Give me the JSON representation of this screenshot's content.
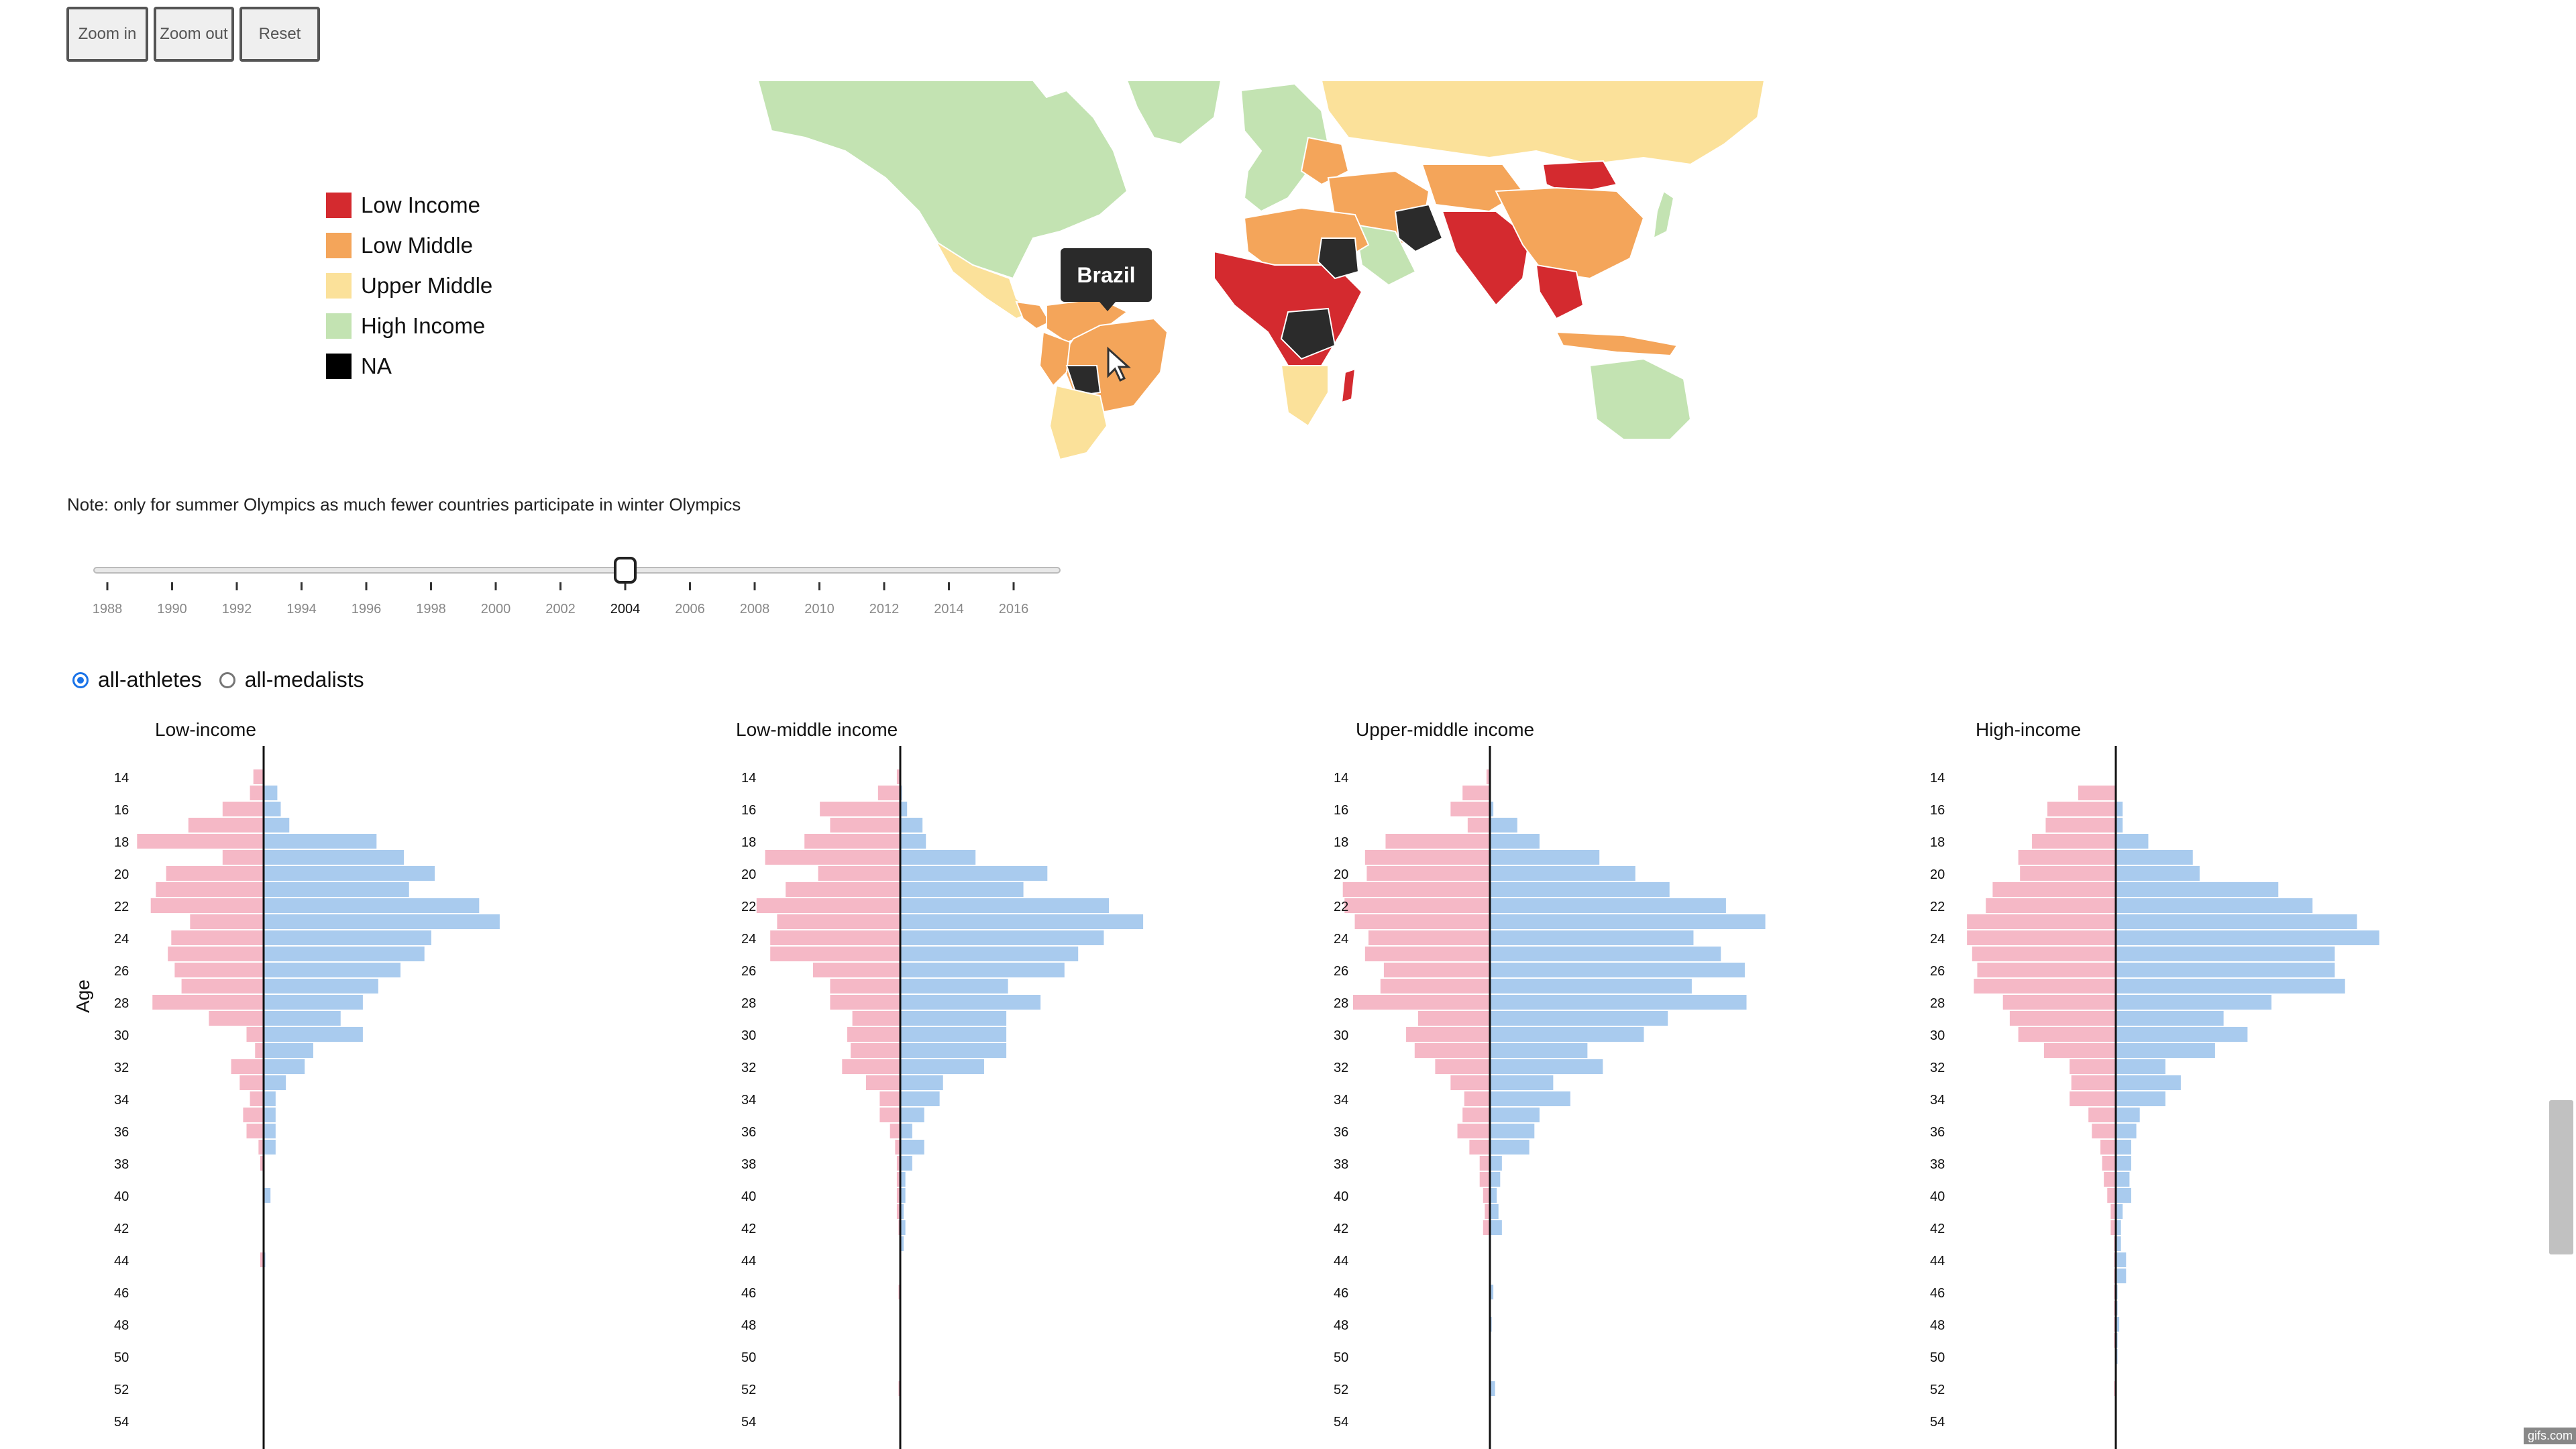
{
  "toolbar": {
    "zoom_in": "Zoom in",
    "zoom_out": "Zoom out",
    "reset": "Reset"
  },
  "legend": [
    {
      "label": "Low Income",
      "color": "#d42a2f"
    },
    {
      "label": "Low Middle",
      "color": "#f4a55a"
    },
    {
      "label": "Upper Middle",
      "color": "#fbe19a"
    },
    {
      "label": "High Income",
      "color": "#c3e3b2"
    },
    {
      "label": "NA",
      "color": "#000000"
    }
  ],
  "tooltip": "Brazil",
  "note": "Note: only for summer Olympics as much fewer countries participate in winter Olympics",
  "slider": {
    "years": [
      "1988",
      "1990",
      "1992",
      "1994",
      "1996",
      "1998",
      "2000",
      "2002",
      "2004",
      "2006",
      "2008",
      "2010",
      "2012",
      "2014",
      "2016"
    ],
    "selected": "2004"
  },
  "radio": {
    "all_athletes": "all-athletes",
    "all_medalists": "all-medalists",
    "selected": "all-athletes"
  },
  "age_axis_label": "Age",
  "chart_data": {
    "type": "bar",
    "ages": [
      14,
      15,
      16,
      17,
      18,
      19,
      20,
      21,
      22,
      23,
      24,
      25,
      26,
      27,
      28,
      29,
      30,
      31,
      32,
      33,
      34,
      35,
      36,
      37,
      38,
      39,
      40,
      41,
      42,
      43,
      44,
      45,
      46,
      47,
      48,
      49,
      50,
      51,
      52,
      53,
      54
    ],
    "tick_labels": [
      "14",
      "16",
      "18",
      "20",
      "22",
      "24",
      "26",
      "28",
      "30",
      "32",
      "34",
      "36",
      "38",
      "40",
      "42",
      "44",
      "46",
      "48",
      "50",
      "52",
      "54"
    ],
    "colors": {
      "left": "#f5b8c6",
      "right": "#a9cbee"
    },
    "panels": [
      {
        "title": "Low-income",
        "left": [
          6,
          8,
          24,
          44,
          74,
          24,
          57,
          63,
          66,
          43,
          54,
          56,
          52,
          48,
          65,
          32,
          10,
          5,
          19,
          14,
          8,
          12,
          10,
          3,
          2,
          0,
          0,
          0,
          0,
          0,
          2,
          0,
          0,
          0,
          0,
          0,
          0,
          0,
          0,
          0,
          0
        ],
        "right": [
          0,
          8,
          10,
          15,
          66,
          82,
          100,
          85,
          126,
          138,
          98,
          94,
          80,
          67,
          58,
          45,
          58,
          29,
          24,
          13,
          7,
          7,
          7,
          7,
          0,
          0,
          4,
          0,
          0,
          0,
          1,
          0,
          0,
          0,
          0,
          0,
          0,
          0,
          0,
          0,
          0
        ]
      },
      {
        "title": "Low-middle income",
        "left": [
          2,
          13,
          47,
          41,
          56,
          79,
          48,
          67,
          84,
          72,
          76,
          76,
          51,
          41,
          41,
          28,
          31,
          29,
          34,
          20,
          12,
          12,
          6,
          3,
          2,
          2,
          2,
          2,
          1,
          0,
          0,
          0,
          1,
          0,
          0,
          0,
          0,
          0,
          1,
          0,
          0
        ],
        "right": [
          0,
          1,
          4,
          13,
          15,
          44,
          86,
          72,
          122,
          142,
          119,
          104,
          96,
          63,
          82,
          62,
          62,
          62,
          49,
          25,
          23,
          14,
          7,
          14,
          7,
          3,
          3,
          2,
          3,
          2,
          0,
          0,
          0,
          0,
          0,
          0,
          0,
          0,
          0,
          0,
          0
        ]
      },
      {
        "title": "Upper-middle income",
        "left": [
          2,
          16,
          23,
          13,
          61,
          73,
          72,
          86,
          85,
          79,
          71,
          73,
          62,
          64,
          80,
          42,
          49,
          44,
          32,
          23,
          15,
          16,
          19,
          12,
          6,
          6,
          4,
          3,
          4,
          0,
          0,
          0,
          0,
          0,
          0,
          0,
          0,
          0,
          0,
          0,
          0
        ],
        "right": [
          0,
          0,
          2,
          16,
          29,
          64,
          85,
          105,
          138,
          161,
          119,
          135,
          149,
          118,
          150,
          104,
          90,
          57,
          66,
          37,
          47,
          29,
          26,
          23,
          7,
          6,
          4,
          5,
          7,
          0,
          0,
          0,
          2,
          0,
          1,
          0,
          0,
          0,
          3,
          0,
          0
        ]
      },
      {
        "title": "High-income",
        "left": [
          0,
          22,
          40,
          41,
          49,
          57,
          56,
          72,
          76,
          87,
          87,
          84,
          81,
          83,
          66,
          62,
          57,
          42,
          27,
          26,
          27,
          16,
          14,
          9,
          8,
          7,
          5,
          3,
          3,
          1,
          1,
          1,
          1,
          1,
          1,
          1,
          0,
          0,
          1,
          0,
          0
        ],
        "right": [
          0,
          0,
          4,
          4,
          19,
          45,
          49,
          95,
          115,
          141,
          154,
          128,
          128,
          134,
          91,
          63,
          77,
          58,
          29,
          38,
          29,
          14,
          12,
          9,
          9,
          8,
          9,
          4,
          3,
          3,
          6,
          6,
          1,
          1,
          2,
          1,
          1,
          0,
          0,
          0,
          0
        ]
      }
    ]
  }
}
